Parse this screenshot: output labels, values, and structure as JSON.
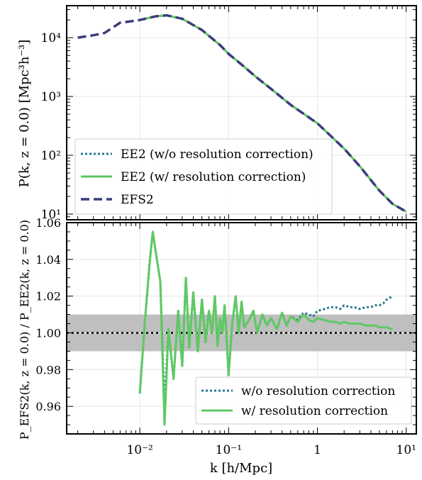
{
  "chart_data": [
    {
      "type": "line",
      "ylabel": "P(k, z = 0.0) [Mpc³h⁻³]",
      "xscale": "log",
      "yscale": "log",
      "xlim": [
        0.0015,
        13
      ],
      "ylim": [
        8,
        35000
      ],
      "grid": true,
      "legend_position": "lower-left",
      "y_ticks": [
        {
          "v": 10,
          "label": "10¹"
        },
        {
          "v": 100,
          "label": "10²"
        },
        {
          "v": 1000,
          "label": "10³"
        },
        {
          "v": 10000,
          "label": "10⁴"
        }
      ],
      "series": [
        {
          "name": "EE2 (w/o resolution correction)",
          "color": "#2a788e",
          "style": "dotted",
          "x": [
            0.01,
            0.015,
            0.02,
            0.03,
            0.05,
            0.08,
            0.1,
            0.15,
            0.2,
            0.3,
            0.5,
            1,
            2,
            3,
            5,
            7,
            10
          ],
          "y": [
            20000,
            23000,
            24000,
            21000,
            13500,
            7500,
            5300,
            3200,
            2200,
            1350,
            720,
            350,
            130,
            65,
            25,
            15,
            11
          ]
        },
        {
          "name": "EE2 (w/ resolution correction)",
          "color": "#5ec962",
          "style": "solid",
          "x": [
            0.01,
            0.015,
            0.02,
            0.03,
            0.05,
            0.08,
            0.1,
            0.15,
            0.2,
            0.3,
            0.5,
            1,
            2,
            3,
            5,
            7,
            10
          ],
          "y": [
            20000,
            23000,
            24000,
            21000,
            13500,
            7500,
            5300,
            3200,
            2200,
            1350,
            720,
            350,
            130,
            65,
            25,
            15,
            11
          ]
        },
        {
          "name": "EFS2",
          "color": "#3b3d7c",
          "style": "dashed",
          "x": [
            0.002,
            0.003,
            0.004,
            0.005,
            0.006,
            0.008,
            0.01,
            0.015,
            0.02,
            0.03,
            0.05,
            0.08,
            0.1,
            0.15,
            0.2,
            0.3,
            0.5,
            1,
            2,
            3,
            5,
            7,
            10
          ],
          "y": [
            10000,
            11000,
            12000,
            15000,
            18000,
            19000,
            20000,
            23000,
            24000,
            21000,
            13500,
            7500,
            5300,
            3200,
            2200,
            1350,
            720,
            350,
            130,
            65,
            25,
            15,
            11
          ]
        }
      ]
    },
    {
      "type": "line",
      "xlabel": "k [h/Mpc]",
      "ylabel": "P_EFS2(k, z = 0.0) / P_EE2(k, z = 0.0)",
      "xscale": "log",
      "xlim": [
        0.0015,
        13
      ],
      "ylim": [
        0.945,
        1.06
      ],
      "grid": true,
      "legend_position": "lower-right",
      "band": [
        0.99,
        1.01
      ],
      "reference_line": 1.0,
      "x_ticks": [
        {
          "v": 0.01,
          "label": "10⁻²"
        },
        {
          "v": 0.1,
          "label": "10⁻¹"
        },
        {
          "v": 1,
          "label": "1"
        },
        {
          "v": 10,
          "label": "10¹"
        }
      ],
      "y_ticks": [
        0.96,
        0.98,
        1.0,
        1.02,
        1.04,
        1.06
      ],
      "series": [
        {
          "name": "w/o resolution correction",
          "color": "#2a788e",
          "style": "dotted",
          "x": [
            0.01,
            0.0115,
            0.013,
            0.014,
            0.015,
            0.017,
            0.019,
            0.021,
            0.024,
            0.027,
            0.03,
            0.033,
            0.036,
            0.04,
            0.045,
            0.05,
            0.055,
            0.06,
            0.065,
            0.07,
            0.075,
            0.08,
            0.085,
            0.09,
            0.095,
            0.1,
            0.11,
            0.12,
            0.13,
            0.14,
            0.15,
            0.17,
            0.19,
            0.21,
            0.24,
            0.27,
            0.3,
            0.35,
            0.4,
            0.45,
            0.5,
            0.6,
            0.7,
            0.8,
            0.9,
            1,
            1.2,
            1.4,
            1.6,
            1.8,
            2,
            2.3,
            2.6,
            3,
            3.5,
            4,
            4.5,
            5,
            5.5,
            6,
            7
          ],
          "y": [
            0.967,
            1.008,
            1.04,
            1.055,
            1.045,
            1.028,
            0.96,
            1.002,
            0.975,
            1.012,
            0.982,
            1.03,
            0.992,
            1.022,
            0.99,
            1.018,
            0.995,
            1.012,
            1.0,
            1.02,
            0.993,
            1.008,
            1.0,
            1.015,
            0.997,
            0.977,
            1.005,
            1.02,
            1.0,
            1.017,
            1.003,
            1.007,
            1.012,
            1.0,
            1.01,
            1.004,
            1.008,
            1.002,
            1.011,
            1.004,
            1.009,
            1.007,
            1.011,
            1.01,
            1.009,
            1.012,
            1.013,
            1.014,
            1.014,
            1.013,
            1.015,
            1.014,
            1.014,
            1.013,
            1.014,
            1.014,
            1.015,
            1.015,
            1.016,
            1.018,
            1.02
          ]
        },
        {
          "name": "w/ resolution correction",
          "color": "#5ec962",
          "style": "solid",
          "x": [
            0.01,
            0.0115,
            0.013,
            0.014,
            0.015,
            0.017,
            0.019,
            0.021,
            0.024,
            0.027,
            0.03,
            0.033,
            0.036,
            0.04,
            0.045,
            0.05,
            0.055,
            0.06,
            0.065,
            0.07,
            0.075,
            0.08,
            0.085,
            0.09,
            0.095,
            0.1,
            0.11,
            0.12,
            0.13,
            0.14,
            0.15,
            0.17,
            0.19,
            0.21,
            0.24,
            0.27,
            0.3,
            0.35,
            0.4,
            0.45,
            0.5,
            0.6,
            0.7,
            0.8,
            0.9,
            1,
            1.2,
            1.4,
            1.6,
            1.8,
            2,
            2.3,
            2.6,
            3,
            3.5,
            4,
            4.5,
            5,
            5.5,
            6,
            7
          ],
          "y": [
            0.967,
            1.008,
            1.04,
            1.055,
            1.045,
            1.028,
            0.95,
            1.002,
            0.975,
            1.012,
            0.982,
            1.03,
            0.992,
            1.022,
            0.99,
            1.018,
            0.995,
            1.012,
            1.0,
            1.02,
            0.993,
            1.008,
            1.0,
            1.015,
            0.997,
            0.977,
            1.005,
            1.02,
            1.0,
            1.017,
            1.003,
            1.007,
            1.012,
            1.0,
            1.01,
            1.004,
            1.008,
            1.002,
            1.011,
            1.004,
            1.009,
            1.006,
            1.01,
            1.007,
            1.006,
            1.008,
            1.007,
            1.006,
            1.006,
            1.005,
            1.006,
            1.005,
            1.005,
            1.005,
            1.004,
            1.004,
            1.004,
            1.003,
            1.003,
            1.003,
            1.002
          ]
        }
      ]
    }
  ]
}
